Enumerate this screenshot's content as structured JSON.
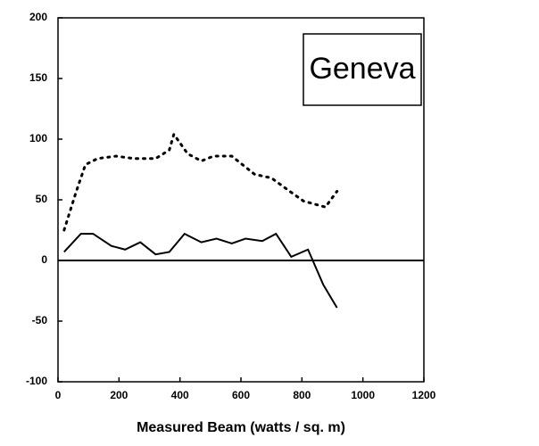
{
  "chart_data": {
    "type": "line",
    "annotation": "Geneva",
    "x_label": "Measured Beam (watts / sq. m)",
    "series": [
      {
        "style": "dotted",
        "color": "#000000",
        "x": [
          20,
          60,
          90,
          130,
          190,
          250,
          320,
          365,
          380,
          425,
          470,
          510,
          570,
          645,
          700,
          760,
          805,
          877,
          915
        ],
        "values": [
          25,
          57,
          79,
          84,
          86,
          84,
          84,
          91,
          104,
          88,
          82,
          86,
          86,
          71,
          68,
          57,
          49,
          44,
          57
        ]
      },
      {
        "style": "solid",
        "color": "#000000",
        "x": [
          20,
          75,
          115,
          175,
          220,
          270,
          320,
          365,
          415,
          470,
          520,
          570,
          615,
          670,
          715,
          765,
          820,
          870,
          915
        ],
        "values": [
          7,
          22,
          22,
          12,
          9,
          15,
          5,
          7,
          22,
          15,
          18,
          14,
          18,
          16,
          22,
          3,
          9,
          -20,
          -39
        ]
      }
    ],
    "xlim": [
      0,
      1200
    ],
    "xticks": [
      0,
      200,
      400,
      600,
      800,
      1000,
      1200
    ],
    "ylim": [
      -100,
      200
    ],
    "yticks": [
      -100,
      -50,
      0,
      50,
      100,
      150,
      200
    ]
  }
}
